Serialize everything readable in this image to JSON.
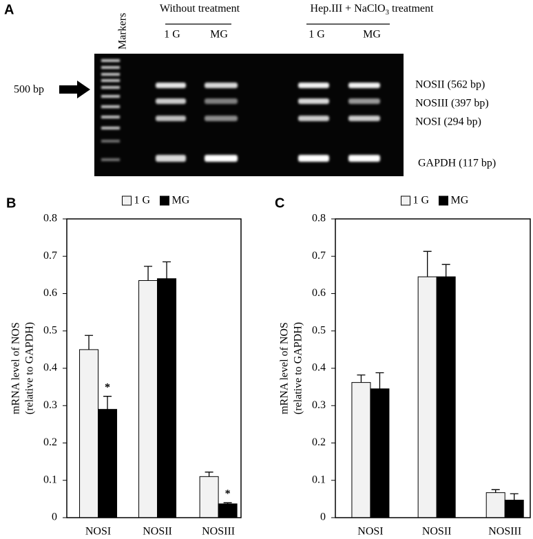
{
  "gel": {
    "panel_label": "A",
    "markers_label": "Markers",
    "groups": [
      {
        "title_parts": [
          "Without treatment"
        ],
        "lanes": [
          "1 G",
          "MG"
        ]
      },
      {
        "title_parts": [
          "Hep.III + NaClO",
          "3",
          " treatment"
        ],
        "lanes": [
          "1 G",
          "MG"
        ]
      }
    ],
    "size_marker": "500 bp",
    "bands": [
      "NOSII (562 bp)",
      "NOSIII (397 bp)",
      "NOSI (294 bp)",
      "GAPDH (117 bp)"
    ]
  },
  "chart_data": [
    {
      "type": "bar",
      "panel_label": "B",
      "ylabel": [
        "mRNA level of NOS",
        "(relative to GAPDH)"
      ],
      "categories": [
        "NOSI",
        "NOSII",
        "NOSIII"
      ],
      "series": [
        {
          "name": "1 G",
          "color": "#f2f2f2",
          "values": [
            0.45,
            0.635,
            0.11
          ],
          "errors": [
            0.038,
            0.038,
            0.012
          ]
        },
        {
          "name": "MG",
          "color": "#000000",
          "values": [
            0.29,
            0.64,
            0.037
          ],
          "errors": [
            0.035,
            0.045,
            0.003
          ]
        }
      ],
      "annotations": [
        "*",
        "*"
      ],
      "ylim": [
        0,
        0.8
      ],
      "yticks": [
        0,
        0.1,
        0.2,
        0.3,
        0.4,
        0.5,
        0.6,
        0.7,
        0.8
      ]
    },
    {
      "type": "bar",
      "panel_label": "C",
      "ylabel": [
        "mRNA level of NOS",
        "(relative to GAPDH)"
      ],
      "categories": [
        "NOSI",
        "NOSII",
        "NOSIII"
      ],
      "series": [
        {
          "name": "1 G",
          "color": "#f2f2f2",
          "values": [
            0.362,
            0.645,
            0.067
          ],
          "errors": [
            0.02,
            0.068,
            0.008
          ]
        },
        {
          "name": "MG",
          "color": "#000000",
          "values": [
            0.345,
            0.645,
            0.047
          ],
          "errors": [
            0.043,
            0.033,
            0.017
          ]
        }
      ],
      "ylim": [
        0,
        0.8
      ],
      "yticks": [
        0,
        0.1,
        0.2,
        0.3,
        0.4,
        0.5,
        0.6,
        0.7,
        0.8
      ]
    }
  ]
}
